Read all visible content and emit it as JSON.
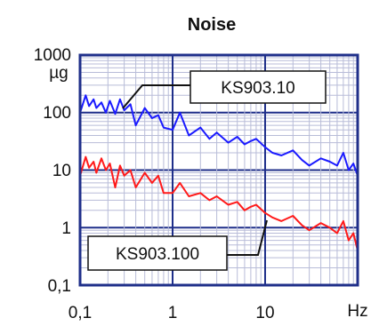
{
  "chart_data": {
    "type": "line",
    "title": "Noise",
    "y_unit": "µg",
    "x_unit": "Hz",
    "xscale": "log",
    "yscale": "log",
    "xlim": [
      0.1,
      100
    ],
    "ylim": [
      0.1,
      1000
    ],
    "x_ticks": [
      "0,1",
      "1",
      "10"
    ],
    "y_ticks": [
      "1000",
      "100",
      "10",
      "1",
      "0,1"
    ],
    "grid": true,
    "colors": {
      "frame": "#1f2f8a",
      "grid_major": "#1f2f8a",
      "grid_minor": "#b8bcd8",
      "series_1": "#1a1aff",
      "series_2": "#ff1a1a"
    },
    "series": [
      {
        "name": "KS903.10",
        "color": "#1a1aff",
        "x": [
          0.1,
          0.115,
          0.125,
          0.14,
          0.15,
          0.17,
          0.19,
          0.21,
          0.24,
          0.27,
          0.3,
          0.35,
          0.4,
          0.5,
          0.6,
          0.7,
          0.8,
          1.0,
          1.2,
          1.5,
          2,
          2.5,
          3,
          4,
          5,
          6,
          7,
          8,
          10,
          12,
          15,
          20,
          25,
          30,
          40,
          50,
          60,
          70,
          80,
          90,
          100
        ],
        "y": [
          100,
          200,
          130,
          170,
          120,
          150,
          100,
          160,
          95,
          170,
          110,
          140,
          60,
          120,
          80,
          90,
          55,
          50,
          100,
          40,
          55,
          35,
          45,
          30,
          38,
          28,
          32,
          35,
          25,
          20,
          18,
          22,
          15,
          12,
          16,
          14,
          12,
          20,
          10,
          13,
          8
        ]
      },
      {
        "name": "KS903.100",
        "color": "#ff1a1a",
        "x": [
          0.1,
          0.115,
          0.125,
          0.14,
          0.15,
          0.17,
          0.19,
          0.21,
          0.24,
          0.27,
          0.3,
          0.35,
          0.4,
          0.5,
          0.6,
          0.7,
          0.8,
          1.0,
          1.2,
          1.5,
          2,
          2.5,
          3,
          4,
          5,
          6,
          7,
          8,
          10,
          12,
          15,
          20,
          25,
          30,
          40,
          50,
          60,
          70,
          80,
          90,
          100
        ],
        "y": [
          8,
          17,
          11,
          14,
          9,
          16,
          10,
          13,
          5,
          12,
          8,
          10,
          5,
          9,
          6,
          8,
          4,
          4,
          6,
          3.5,
          4,
          3,
          3.5,
          2.5,
          2.8,
          2,
          2.3,
          2.5,
          1.8,
          1.5,
          1.3,
          1.6,
          1.1,
          0.9,
          1.2,
          1.0,
          0.8,
          1.3,
          0.6,
          0.8,
          0.4
        ]
      }
    ],
    "annotations": [
      {
        "text": "KS903.10",
        "series": "KS903.10"
      },
      {
        "text": "KS903.100",
        "series": "KS903.100"
      }
    ]
  }
}
